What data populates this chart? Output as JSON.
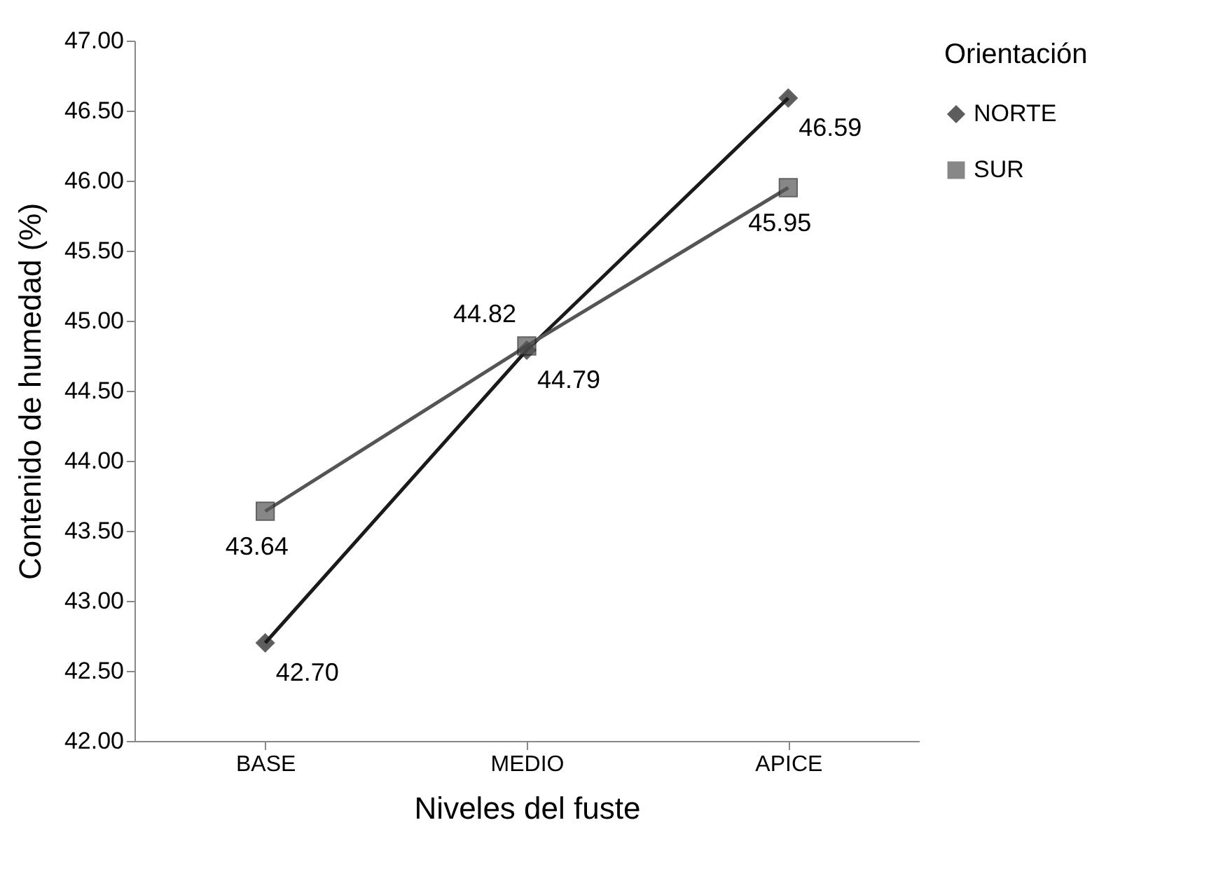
{
  "chart_data": {
    "type": "line",
    "xlabel": "Niveles del fuste",
    "ylabel": "Contenido de humedad (%)",
    "legend_title": "Orientación",
    "categories": [
      "BASE",
      "MEDIO",
      "APICE"
    ],
    "series": [
      {
        "name": "NORTE",
        "color": "#1a1a1a",
        "marker": "diamond",
        "values": [
          42.7,
          44.79,
          46.59
        ],
        "value_labels": [
          "42.70",
          "44.79",
          "46.59"
        ]
      },
      {
        "name": "SUR",
        "color": "#555555",
        "marker": "square",
        "values": [
          43.64,
          44.82,
          45.95
        ],
        "value_labels": [
          "43.64",
          "44.82",
          "45.95"
        ]
      }
    ],
    "ylim": [
      42,
      47
    ],
    "yticks": [
      {
        "value": 42,
        "label": "42.00"
      },
      {
        "value": 42.5,
        "label": "42.50"
      },
      {
        "value": 43,
        "label": "43.00"
      },
      {
        "value": 43.5,
        "label": "43.50"
      },
      {
        "value": 44,
        "label": "44.00"
      },
      {
        "value": 44.5,
        "label": "44.50"
      },
      {
        "value": 45,
        "label": "45.00"
      },
      {
        "value": 45.5,
        "label": "45.50"
      },
      {
        "value": 46,
        "label": "46.00"
      },
      {
        "value": 46.5,
        "label": "46.50"
      },
      {
        "value": 47,
        "label": "47.00"
      }
    ],
    "grid": false,
    "legend": "right",
    "line_style": "solid"
  }
}
